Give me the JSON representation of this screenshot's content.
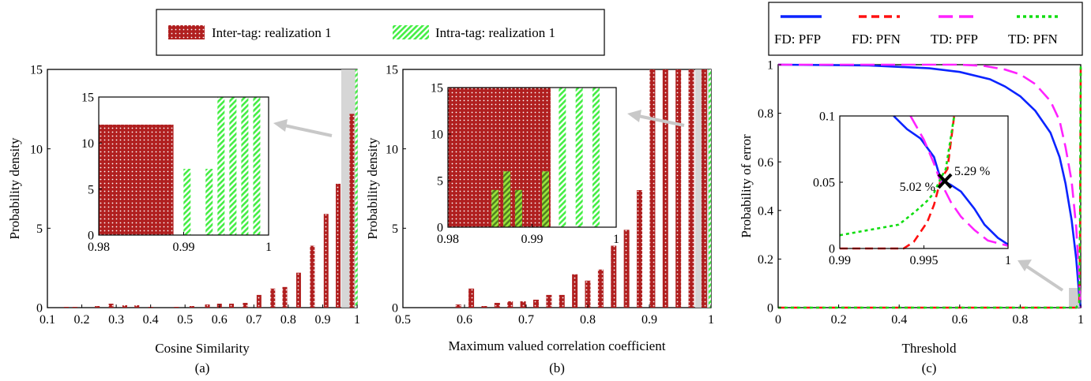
{
  "chart_data": [
    {
      "type": "bar",
      "panel_label": "(a)",
      "xlabel": "Cosine Similarity",
      "ylabel": "Probability density",
      "xlim": [
        0.1,
        1
      ],
      "ylim": [
        0,
        15
      ],
      "xticks": [
        0.1,
        0.2,
        0.3,
        0.4,
        0.5,
        0.6,
        0.7,
        0.8,
        0.9,
        1
      ],
      "yticks": [
        0,
        5,
        10,
        15
      ],
      "legend": {
        "placement": "top",
        "entries": [
          "Inter-tag: realization 1",
          "Intra-tag: realization 1"
        ]
      },
      "series": [
        {
          "name": "Inter-tag: realization 1",
          "color": "#b01f1f",
          "x": [
            0.155,
            0.18,
            0.245,
            0.285,
            0.325,
            0.36,
            0.4,
            0.475,
            0.52,
            0.565,
            0.6,
            0.635,
            0.675,
            0.715,
            0.755,
            0.79,
            0.83,
            0.87,
            0.91,
            0.945,
            0.985
          ],
          "values": [
            0.05,
            0.05,
            0.1,
            0.25,
            0.15,
            0.15,
            0.05,
            0.05,
            0.1,
            0.2,
            0.25,
            0.25,
            0.3,
            0.8,
            1.2,
            1.3,
            2.2,
            3.9,
            5.9,
            7.8,
            12.2
          ]
        },
        {
          "name": "Intra-tag: realization 1",
          "color": "#44ee44",
          "x": [
            0.998
          ],
          "values": [
            15
          ]
        }
      ],
      "inset": {
        "xlim": [
          0.98,
          1
        ],
        "ylim": [
          0,
          15
        ],
        "xticks": [
          0.98,
          0.99,
          1
        ],
        "yticks": [
          0,
          5,
          10,
          15
        ],
        "inter": [
          {
            "x0": 0.98,
            "x1": 0.9888,
            "y": 12
          }
        ],
        "intra": [
          {
            "x": 0.9904,
            "y": 7.2
          },
          {
            "x": 0.993,
            "y": 7.2
          },
          {
            "x": 0.9944,
            "y": 15
          },
          {
            "x": 0.9958,
            "y": 15
          },
          {
            "x": 0.9972,
            "y": 15
          },
          {
            "x": 0.9986,
            "y": 15
          }
        ]
      }
    },
    {
      "type": "bar",
      "panel_label": "(b)",
      "xlabel": "Maximum valued correlation coefficient",
      "ylabel": "Probability density",
      "xlim": [
        0.5,
        1
      ],
      "ylim": [
        0,
        15
      ],
      "xticks": [
        0.5,
        0.6,
        0.7,
        0.8,
        0.9,
        1
      ],
      "yticks": [
        0,
        5,
        10,
        15
      ],
      "series": [
        {
          "name": "Inter-tag: realization 1",
          "color": "#b01f1f",
          "x": [
            0.59,
            0.611,
            0.632,
            0.653,
            0.674,
            0.695,
            0.716,
            0.737,
            0.758,
            0.779,
            0.8,
            0.821,
            0.842,
            0.863,
            0.884,
            0.905,
            0.926,
            0.947,
            0.968,
            0.989
          ],
          "values": [
            0.2,
            1.2,
            0.1,
            0.3,
            0.4,
            0.4,
            0.5,
            0.8,
            0.8,
            2.1,
            1.7,
            2.4,
            3.9,
            4.9,
            7.4,
            15,
            15,
            15,
            15,
            15
          ]
        },
        {
          "name": "Intra-tag: realization 1",
          "color": "#44ee44",
          "x": [
            0.998
          ],
          "values": [
            15
          ]
        }
      ],
      "inset": {
        "xlim": [
          0.98,
          1
        ],
        "ylim": [
          0,
          15
        ],
        "xticks": [
          0.98,
          0.99,
          1
        ],
        "yticks": [
          0,
          5,
          10,
          15
        ],
        "inter": [
          {
            "x0": 0.98,
            "x1": 0.9922,
            "y": 15
          }
        ],
        "intra": [
          {
            "x": 0.9856,
            "y": 4
          },
          {
            "x": 0.987,
            "y": 6
          },
          {
            "x": 0.9884,
            "y": 4
          },
          {
            "x": 0.9916,
            "y": 6
          },
          {
            "x": 0.9936,
            "y": 15
          },
          {
            "x": 0.9956,
            "y": 15
          },
          {
            "x": 0.9976,
            "y": 15
          }
        ]
      }
    },
    {
      "type": "line",
      "panel_label": "(c)",
      "xlabel": "Threshold",
      "ylabel": "Probability of error",
      "xlim": [
        0,
        1
      ],
      "ylim": [
        0,
        1
      ],
      "xticks": [
        0,
        0.2,
        0.4,
        0.6,
        0.8,
        1
      ],
      "yticks": [
        0,
        0.2,
        0.4,
        0.6,
        0.8,
        1
      ],
      "legend": {
        "placement": "top",
        "entries": [
          "FD: PFP",
          "FD: PFN",
          "TD: PFP",
          "TD: PFN"
        ]
      },
      "series": [
        {
          "name": "FD: PFP",
          "color": "#0b24ff",
          "style": "solid",
          "x": [
            0,
            0.3,
            0.5,
            0.6,
            0.7,
            0.75,
            0.8,
            0.85,
            0.9,
            0.93,
            0.95,
            0.97,
            0.985,
            0.995,
            1
          ],
          "y": [
            1,
            0.997,
            0.985,
            0.97,
            0.94,
            0.91,
            0.87,
            0.81,
            0.72,
            0.62,
            0.51,
            0.36,
            0.2,
            0.05,
            0
          ]
        },
        {
          "name": "FD: PFN",
          "color": "#ff1010",
          "style": "dashed",
          "x": [
            0,
            0.985,
            0.995,
            0.998,
            1
          ],
          "y": [
            0,
            0,
            0.02,
            0.3,
            1
          ]
        },
        {
          "name": "TD: PFP",
          "color": "#ff22ff",
          "style": "long-dashed",
          "x": [
            0,
            0.5,
            0.6,
            0.68,
            0.75,
            0.8,
            0.85,
            0.9,
            0.93,
            0.95,
            0.97,
            0.985,
            0.995,
            1
          ],
          "y": [
            1,
            1,
            1,
            0.995,
            0.98,
            0.96,
            0.92,
            0.85,
            0.77,
            0.66,
            0.52,
            0.33,
            0.12,
            0
          ]
        },
        {
          "name": "TD: PFN",
          "color": "#11dd11",
          "style": "dotted",
          "x": [
            0,
            0.985,
            0.995,
            0.998,
            1
          ],
          "y": [
            0,
            0,
            0.02,
            0.4,
            1
          ]
        }
      ],
      "inset": {
        "xlim": [
          0.99,
          1
        ],
        "ylim": [
          0,
          0.1
        ],
        "xticks": [
          0.99,
          0.995,
          1
        ],
        "yticks": [
          0,
          0.05,
          0.1
        ],
        "annotations": [
          "5.02 %",
          "5.29 %"
        ],
        "series": [
          {
            "name": "FD: PFP",
            "color": "#0b24ff",
            "style": "solid",
            "x": [
              0.9932,
              0.994,
              0.9948,
              0.9956,
              0.996,
              0.9966,
              0.9972,
              0.998,
              0.9986,
              0.9994,
              1
            ],
            "y": [
              0.1,
              0.09,
              0.083,
              0.069,
              0.052,
              0.048,
              0.043,
              0.03,
              0.018,
              0.008,
              0.003
            ]
          },
          {
            "name": "FD: PFN",
            "color": "#ff1010",
            "style": "dashed",
            "x": [
              0.99,
              0.9938,
              0.9944,
              0.9952,
              0.9956,
              0.996,
              0.9964,
              0.9968
            ],
            "y": [
              0,
              0,
              0.005,
              0.02,
              0.033,
              0.052,
              0.06,
              0.1
            ]
          },
          {
            "name": "TD: PFP",
            "color": "#ff22ff",
            "style": "long-dashed",
            "x": [
              0.9942,
              0.995,
              0.9956,
              0.996,
              0.9966,
              0.9972,
              0.998,
              0.9988,
              1
            ],
            "y": [
              0.1,
              0.082,
              0.064,
              0.05,
              0.035,
              0.024,
              0.014,
              0.006,
              0.002
            ]
          },
          {
            "name": "TD: PFN",
            "color": "#11dd11",
            "style": "dotted",
            "x": [
              0.99,
              0.9935,
              0.9945,
              0.9952,
              0.9956,
              0.996,
              0.9963,
              0.9968
            ],
            "y": [
              0.01,
              0.018,
              0.028,
              0.036,
              0.042,
              0.053,
              0.06,
              0.1
            ]
          }
        ]
      }
    }
  ]
}
